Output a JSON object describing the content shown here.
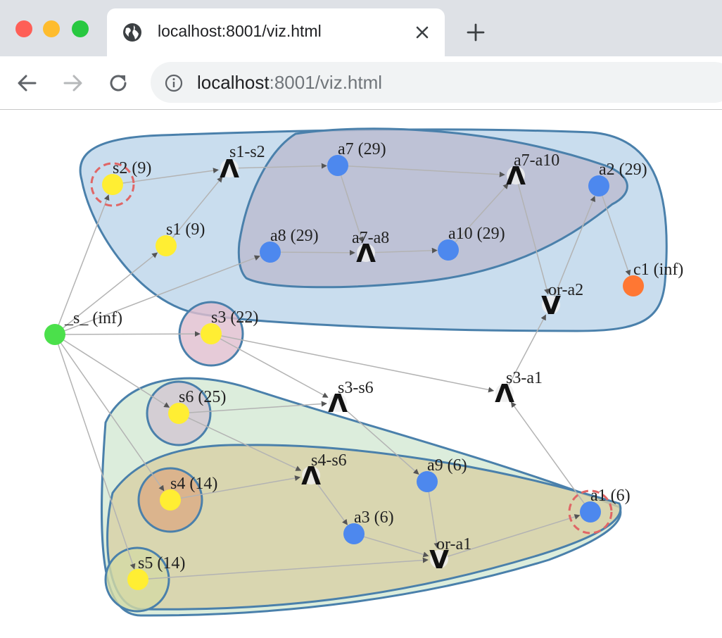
{
  "window": {
    "tab_title": "localhost:8001/viz.html",
    "url_host": "localhost",
    "url_rest": ":8001/viz.html",
    "icons": {
      "close_window": "close-window-icon",
      "minimize_window": "minimize-window-icon",
      "zoom_window": "zoom-window-icon",
      "tab_favicon": "globe-icon",
      "tab_close": "close-icon",
      "new_tab": "plus-icon",
      "back": "arrow-left-icon",
      "forward": "arrow-right-icon",
      "reload": "reload-icon",
      "site_info": "info-icon"
    },
    "traffic_lights": {
      "close": "#fe5f57",
      "minimize": "#febc2e",
      "zoom": "#28c840"
    }
  },
  "graph": {
    "colors": {
      "start": "#4be04b",
      "s_node": "#ffee33",
      "a_node": "#4d88ee",
      "c_node": "#ff7733",
      "edge": "#b3b3b3",
      "arrowhead": "#555555",
      "target_ring": "#e06666",
      "cluster_outline": "#4a80ab"
    },
    "clusters": [
      {
        "name": "top-outer",
        "fill": "#bcd4ea"
      },
      {
        "name": "top-inner",
        "fill": "#bcbccf"
      },
      {
        "name": "bottom-outer",
        "fill": "#d3e8d3"
      },
      {
        "name": "bottom-inner",
        "fill": "#d8d0a5"
      },
      {
        "name": "s3",
        "fill": "#e0bece"
      },
      {
        "name": "s6",
        "fill": "#d2c5d2"
      },
      {
        "name": "s4",
        "fill": "#dbab85"
      },
      {
        "name": "s5",
        "fill": "#d3d9a5"
      }
    ],
    "nodes": [
      {
        "id": "s_",
        "label": "_s_ (inf)",
        "kind": "start"
      },
      {
        "id": "s1",
        "label": "s1 (9)",
        "kind": "s"
      },
      {
        "id": "s2",
        "label": "s2 (9)",
        "kind": "s",
        "ring": true
      },
      {
        "id": "s3",
        "label": "s3 (22)",
        "kind": "s"
      },
      {
        "id": "s4",
        "label": "s4 (14)",
        "kind": "s"
      },
      {
        "id": "s5",
        "label": "s5 (14)",
        "kind": "s"
      },
      {
        "id": "s6",
        "label": "s6 (25)",
        "kind": "s"
      },
      {
        "id": "a1",
        "label": "a1 (6)",
        "kind": "a",
        "ring": true
      },
      {
        "id": "a2",
        "label": "a2 (29)",
        "kind": "a"
      },
      {
        "id": "a3",
        "label": "a3 (6)",
        "kind": "a"
      },
      {
        "id": "a7",
        "label": "a7 (29)",
        "kind": "a"
      },
      {
        "id": "a8",
        "label": "a8 (29)",
        "kind": "a"
      },
      {
        "id": "a9",
        "label": "a9 (6)",
        "kind": "a"
      },
      {
        "id": "a10",
        "label": "a10 (29)",
        "kind": "a"
      },
      {
        "id": "c1",
        "label": "c1 (inf)",
        "kind": "c"
      },
      {
        "id": "s1-s2",
        "label": "s1-s2",
        "kind": "and",
        "glyph": "Λ"
      },
      {
        "id": "a7-a10",
        "label": "a7-a10",
        "kind": "and",
        "glyph": "Λ"
      },
      {
        "id": "a7-a8",
        "label": "a7-a8",
        "kind": "and",
        "glyph": "Λ"
      },
      {
        "id": "or-a2",
        "label": "or-a2",
        "kind": "or",
        "glyph": "V"
      },
      {
        "id": "s3-s6",
        "label": "s3-s6",
        "kind": "and",
        "glyph": "Λ"
      },
      {
        "id": "s3-a1",
        "label": "s3-a1",
        "kind": "and",
        "glyph": "Λ"
      },
      {
        "id": "s4-s6",
        "label": "s4-s6",
        "kind": "and",
        "glyph": "Λ"
      },
      {
        "id": "or-a1",
        "label": "or-a1",
        "kind": "or",
        "glyph": "V"
      }
    ],
    "edges": [
      [
        "s_",
        "s1"
      ],
      [
        "s_",
        "s2"
      ],
      [
        "s_",
        "s3"
      ],
      [
        "s_",
        "s6"
      ],
      [
        "s_",
        "s4"
      ],
      [
        "s_",
        "s5"
      ],
      [
        "s_",
        "a8"
      ],
      [
        "s1",
        "s1-s2"
      ],
      [
        "s2",
        "s1-s2"
      ],
      [
        "s1-s2",
        "a7"
      ],
      [
        "a7",
        "a7-a8"
      ],
      [
        "a8",
        "a7-a8"
      ],
      [
        "a7-a8",
        "a10"
      ],
      [
        "a7",
        "a7-a10"
      ],
      [
        "a10",
        "a7-a10"
      ],
      [
        "a7-a10",
        "or-a2"
      ],
      [
        "or-a2",
        "a2"
      ],
      [
        "a2",
        "c1"
      ],
      [
        "s3",
        "s3-s6"
      ],
      [
        "s6",
        "s3-s6"
      ],
      [
        "s3",
        "s3-a1"
      ],
      [
        "s3-a1",
        "or-a2"
      ],
      [
        "a1",
        "s3-a1"
      ],
      [
        "s6",
        "s4-s6"
      ],
      [
        "s4",
        "s4-s6"
      ],
      [
        "s3-s6",
        "a9"
      ],
      [
        "s4-s6",
        "a3"
      ],
      [
        "a9",
        "or-a1"
      ],
      [
        "a3",
        "or-a1"
      ],
      [
        "s5",
        "or-a1"
      ],
      [
        "or-a1",
        "a1"
      ]
    ]
  }
}
